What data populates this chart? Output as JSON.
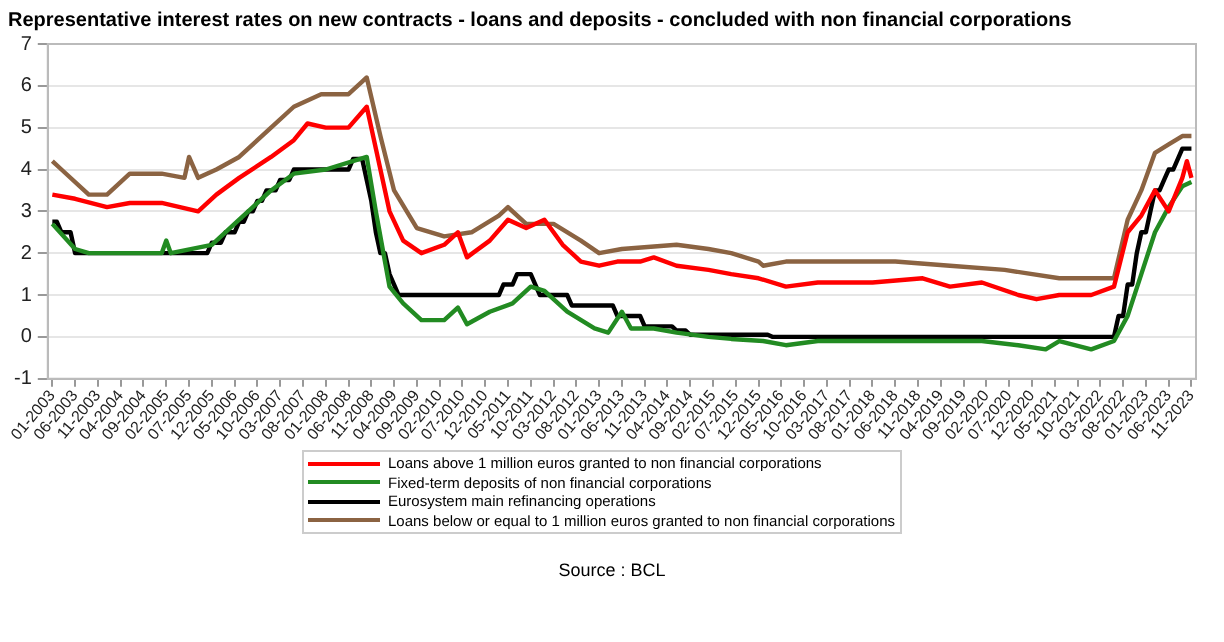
{
  "chart_data": {
    "type": "line",
    "title": "Representative interest rates on new contracts - loans and deposits - concluded with non financial corporations",
    "series": [
      {
        "name": "Loans above 1 million euros granted to non financial corporations",
        "color": "#ff0000",
        "x": [
          "2003-01",
          "2003-06",
          "2004-01",
          "2004-06",
          "2005-01",
          "2005-09",
          "2006-01",
          "2006-06",
          "2007-01",
          "2007-06",
          "2007-09",
          "2008-01",
          "2008-06",
          "2008-10",
          "2008-12",
          "2009-03",
          "2009-06",
          "2009-10",
          "2010-03",
          "2010-06",
          "2010-08",
          "2011-01",
          "2011-05",
          "2011-09",
          "2012-01",
          "2012-05",
          "2012-09",
          "2013-01",
          "2013-05",
          "2013-10",
          "2014-01",
          "2014-06",
          "2015-01",
          "2015-06",
          "2015-12",
          "2016-06",
          "2017-01",
          "2018-01",
          "2018-12",
          "2019-06",
          "2020-01",
          "2020-09",
          "2021-01",
          "2021-06",
          "2022-01",
          "2022-06",
          "2022-09",
          "2022-12",
          "2023-03",
          "2023-06",
          "2023-09",
          "2023-10",
          "2023-11"
        ],
        "values": [
          3.4,
          3.3,
          3.1,
          3.2,
          3.2,
          3.0,
          3.4,
          3.8,
          4.3,
          4.7,
          5.1,
          5.0,
          5.0,
          5.5,
          4.5,
          3.0,
          2.3,
          2.0,
          2.2,
          2.5,
          1.9,
          2.3,
          2.8,
          2.6,
          2.8,
          2.2,
          1.8,
          1.7,
          1.8,
          1.8,
          1.9,
          1.7,
          1.6,
          1.5,
          1.4,
          1.2,
          1.3,
          1.3,
          1.4,
          1.2,
          1.3,
          1.0,
          0.9,
          1.0,
          1.0,
          1.2,
          2.5,
          2.9,
          3.5,
          3.0,
          3.8,
          4.2,
          3.8
        ]
      },
      {
        "name": "Fixed-term deposits of non financial corporations",
        "color": "#228b22",
        "x": [
          "2003-01",
          "2003-06",
          "2003-09",
          "2005-01",
          "2005-02",
          "2005-03",
          "2005-12",
          "2006-06",
          "2007-01",
          "2007-06",
          "2008-01",
          "2008-10",
          "2008-12",
          "2009-03",
          "2009-06",
          "2009-10",
          "2010-03",
          "2010-06",
          "2010-08",
          "2011-01",
          "2011-06",
          "2011-10",
          "2012-01",
          "2012-06",
          "2012-12",
          "2013-03",
          "2013-06",
          "2013-08",
          "2014-01",
          "2014-06",
          "2015-01",
          "2015-06",
          "2016-01",
          "2016-06",
          "2017-01",
          "2018-01",
          "2019-01",
          "2020-01",
          "2020-09",
          "2021-03",
          "2021-06",
          "2022-01",
          "2022-06",
          "2022-09",
          "2022-12",
          "2023-03",
          "2023-06",
          "2023-09",
          "2023-11"
        ],
        "values": [
          2.7,
          2.1,
          2.0,
          2.0,
          2.3,
          2.0,
          2.2,
          2.8,
          3.5,
          3.9,
          4.0,
          4.3,
          3.0,
          1.2,
          0.8,
          0.4,
          0.4,
          0.7,
          0.3,
          0.6,
          0.8,
          1.2,
          1.1,
          0.6,
          0.2,
          0.1,
          0.6,
          0.2,
          0.2,
          0.1,
          0.0,
          -0.05,
          -0.1,
          -0.2,
          -0.1,
          -0.1,
          -0.1,
          -0.1,
          -0.2,
          -0.3,
          -0.1,
          -0.3,
          -0.1,
          0.5,
          1.5,
          2.5,
          3.1,
          3.6,
          3.7
        ]
      },
      {
        "name": "Eurosystem main refinancing operations",
        "color": "#000000",
        "x": [
          "2003-01",
          "2003-02",
          "2003-03",
          "2003-05",
          "2003-06",
          "2005-11",
          "2005-12",
          "2006-02",
          "2006-03",
          "2006-05",
          "2006-06",
          "2006-07",
          "2006-08",
          "2006-09",
          "2006-10",
          "2006-11",
          "2006-12",
          "2007-02",
          "2007-03",
          "2007-05",
          "2007-06",
          "2008-06",
          "2008-07",
          "2008-09",
          "2008-10",
          "2008-11",
          "2008-12",
          "2009-01",
          "2009-02",
          "2009-03",
          "2009-04",
          "2009-05",
          "2011-03",
          "2011-04",
          "2011-06",
          "2011-07",
          "2011-10",
          "2011-11",
          "2011-12",
          "2012-06",
          "2012-07",
          "2013-04",
          "2013-05",
          "2013-10",
          "2013-11",
          "2014-05",
          "2014-06",
          "2014-08",
          "2014-09",
          "2016-02",
          "2016-03",
          "2022-06",
          "2022-07",
          "2022-08",
          "2022-09",
          "2022-10",
          "2022-11",
          "2022-12",
          "2023-01",
          "2023-02",
          "2023-03",
          "2023-04",
          "2023-05",
          "2023-06",
          "2023-07",
          "2023-08",
          "2023-09",
          "2023-11"
        ],
        "values": [
          2.75,
          2.75,
          2.5,
          2.5,
          2.0,
          2.0,
          2.25,
          2.25,
          2.5,
          2.5,
          2.75,
          2.75,
          3.0,
          3.0,
          3.25,
          3.25,
          3.5,
          3.5,
          3.75,
          3.75,
          4.0,
          4.0,
          4.25,
          4.25,
          3.75,
          3.25,
          2.5,
          2.0,
          2.0,
          1.5,
          1.25,
          1.0,
          1.0,
          1.25,
          1.25,
          1.5,
          1.5,
          1.25,
          1.0,
          1.0,
          0.75,
          0.75,
          0.5,
          0.5,
          0.25,
          0.25,
          0.15,
          0.15,
          0.05,
          0.05,
          0.0,
          0.0,
          0.5,
          0.5,
          1.25,
          1.25,
          2.0,
          2.5,
          2.5,
          3.0,
          3.5,
          3.5,
          3.75,
          4.0,
          4.0,
          4.25,
          4.5,
          4.5
        ]
      },
      {
        "name": "Loans below or equal to 1 million euros granted to non financial corporations",
        "color": "#8b6342",
        "x": [
          "2003-01",
          "2003-03",
          "2003-09",
          "2004-01",
          "2004-06",
          "2005-01",
          "2005-06",
          "2005-07",
          "2005-09",
          "2006-01",
          "2006-06",
          "2007-01",
          "2007-06",
          "2007-12",
          "2008-06",
          "2008-09",
          "2008-10",
          "2009-01",
          "2009-04",
          "2009-09",
          "2010-03",
          "2010-09",
          "2011-03",
          "2011-05",
          "2011-09",
          "2012-03",
          "2012-09",
          "2013-01",
          "2013-06",
          "2014-06",
          "2015-01",
          "2015-06",
          "2015-12",
          "2016-01",
          "2016-06",
          "2017-06",
          "2018-06",
          "2019-06",
          "2020-06",
          "2021-06",
          "2022-06",
          "2022-09",
          "2022-12",
          "2023-03",
          "2023-06",
          "2023-09",
          "2023-11"
        ],
        "values": [
          4.2,
          4.0,
          3.4,
          3.4,
          3.9,
          3.9,
          3.8,
          4.3,
          3.8,
          4.0,
          4.3,
          5.0,
          5.5,
          5.8,
          5.8,
          6.1,
          6.2,
          4.8,
          3.5,
          2.6,
          2.4,
          2.5,
          2.9,
          3.1,
          2.7,
          2.7,
          2.3,
          2.0,
          2.1,
          2.2,
          2.1,
          2.0,
          1.8,
          1.7,
          1.8,
          1.8,
          1.8,
          1.7,
          1.6,
          1.4,
          1.4,
          2.8,
          3.5,
          4.4,
          4.6,
          4.8,
          4.8
        ]
      }
    ],
    "xlim": [
      "2002-12",
      "2023-12"
    ],
    "xticks": [
      {
        "value": "2003-01",
        "label": "01-2003"
      },
      {
        "value": "2003-06",
        "label": "06-2003"
      },
      {
        "value": "2003-11",
        "label": "11-2003"
      },
      {
        "value": "2004-04",
        "label": "04-2004"
      },
      {
        "value": "2004-09",
        "label": "09-2004"
      },
      {
        "value": "2005-02",
        "label": "02-2005"
      },
      {
        "value": "2005-07",
        "label": "07-2005"
      },
      {
        "value": "2005-12",
        "label": "12-2005"
      },
      {
        "value": "2006-05",
        "label": "05-2006"
      },
      {
        "value": "2006-10",
        "label": "10-2006"
      },
      {
        "value": "2007-03",
        "label": "03-2007"
      },
      {
        "value": "2007-08",
        "label": "08-2007"
      },
      {
        "value": "2008-01",
        "label": "01-2008"
      },
      {
        "value": "2008-06",
        "label": "06-2008"
      },
      {
        "value": "2008-11",
        "label": "11-2008"
      },
      {
        "value": "2009-04",
        "label": "04-2009"
      },
      {
        "value": "2009-09",
        "label": "09-2009"
      },
      {
        "value": "2010-02",
        "label": "02-2010"
      },
      {
        "value": "2010-07",
        "label": "07-2010"
      },
      {
        "value": "2010-12",
        "label": "12-2010"
      },
      {
        "value": "2011-05",
        "label": "05-2011"
      },
      {
        "value": "2011-10",
        "label": "10-2011"
      },
      {
        "value": "2012-03",
        "label": "03-2012"
      },
      {
        "value": "2012-08",
        "label": "08-2012"
      },
      {
        "value": "2013-01",
        "label": "01-2013"
      },
      {
        "value": "2013-06",
        "label": "06-2013"
      },
      {
        "value": "2013-11",
        "label": "11-2013"
      },
      {
        "value": "2014-04",
        "label": "04-2014"
      },
      {
        "value": "2014-09",
        "label": "09-2014"
      },
      {
        "value": "2015-02",
        "label": "02-2015"
      },
      {
        "value": "2015-07",
        "label": "07-2015"
      },
      {
        "value": "2015-12",
        "label": "12-2015"
      },
      {
        "value": "2016-05",
        "label": "05-2016"
      },
      {
        "value": "2016-10",
        "label": "10-2016"
      },
      {
        "value": "2017-03",
        "label": "03-2017"
      },
      {
        "value": "2017-08",
        "label": "08-2017"
      },
      {
        "value": "2018-01",
        "label": "01-2018"
      },
      {
        "value": "2018-06",
        "label": "06-2018"
      },
      {
        "value": "2018-11",
        "label": "11-2018"
      },
      {
        "value": "2019-04",
        "label": "04-2019"
      },
      {
        "value": "2019-09",
        "label": "09-2019"
      },
      {
        "value": "2020-02",
        "label": "02-2020"
      },
      {
        "value": "2020-07",
        "label": "07-2020"
      },
      {
        "value": "2020-12",
        "label": "12-2020"
      },
      {
        "value": "2021-05",
        "label": "05-2021"
      },
      {
        "value": "2021-10",
        "label": "10-2021"
      },
      {
        "value": "2022-03",
        "label": "03-2022"
      },
      {
        "value": "2022-08",
        "label": "08-2022"
      },
      {
        "value": "2023-01",
        "label": "01-2023"
      },
      {
        "value": "2023-06",
        "label": "06-2023"
      },
      {
        "value": "2023-11",
        "label": "11-2023"
      }
    ],
    "ylim": [
      -1,
      7
    ],
    "yticks": [
      -1,
      0,
      1,
      2,
      3,
      4,
      5,
      6,
      7
    ],
    "grid": "y",
    "legend": "bottom",
    "marker": "none",
    "line_style": "solid",
    "annotations": [
      "Source : BCL"
    ]
  }
}
